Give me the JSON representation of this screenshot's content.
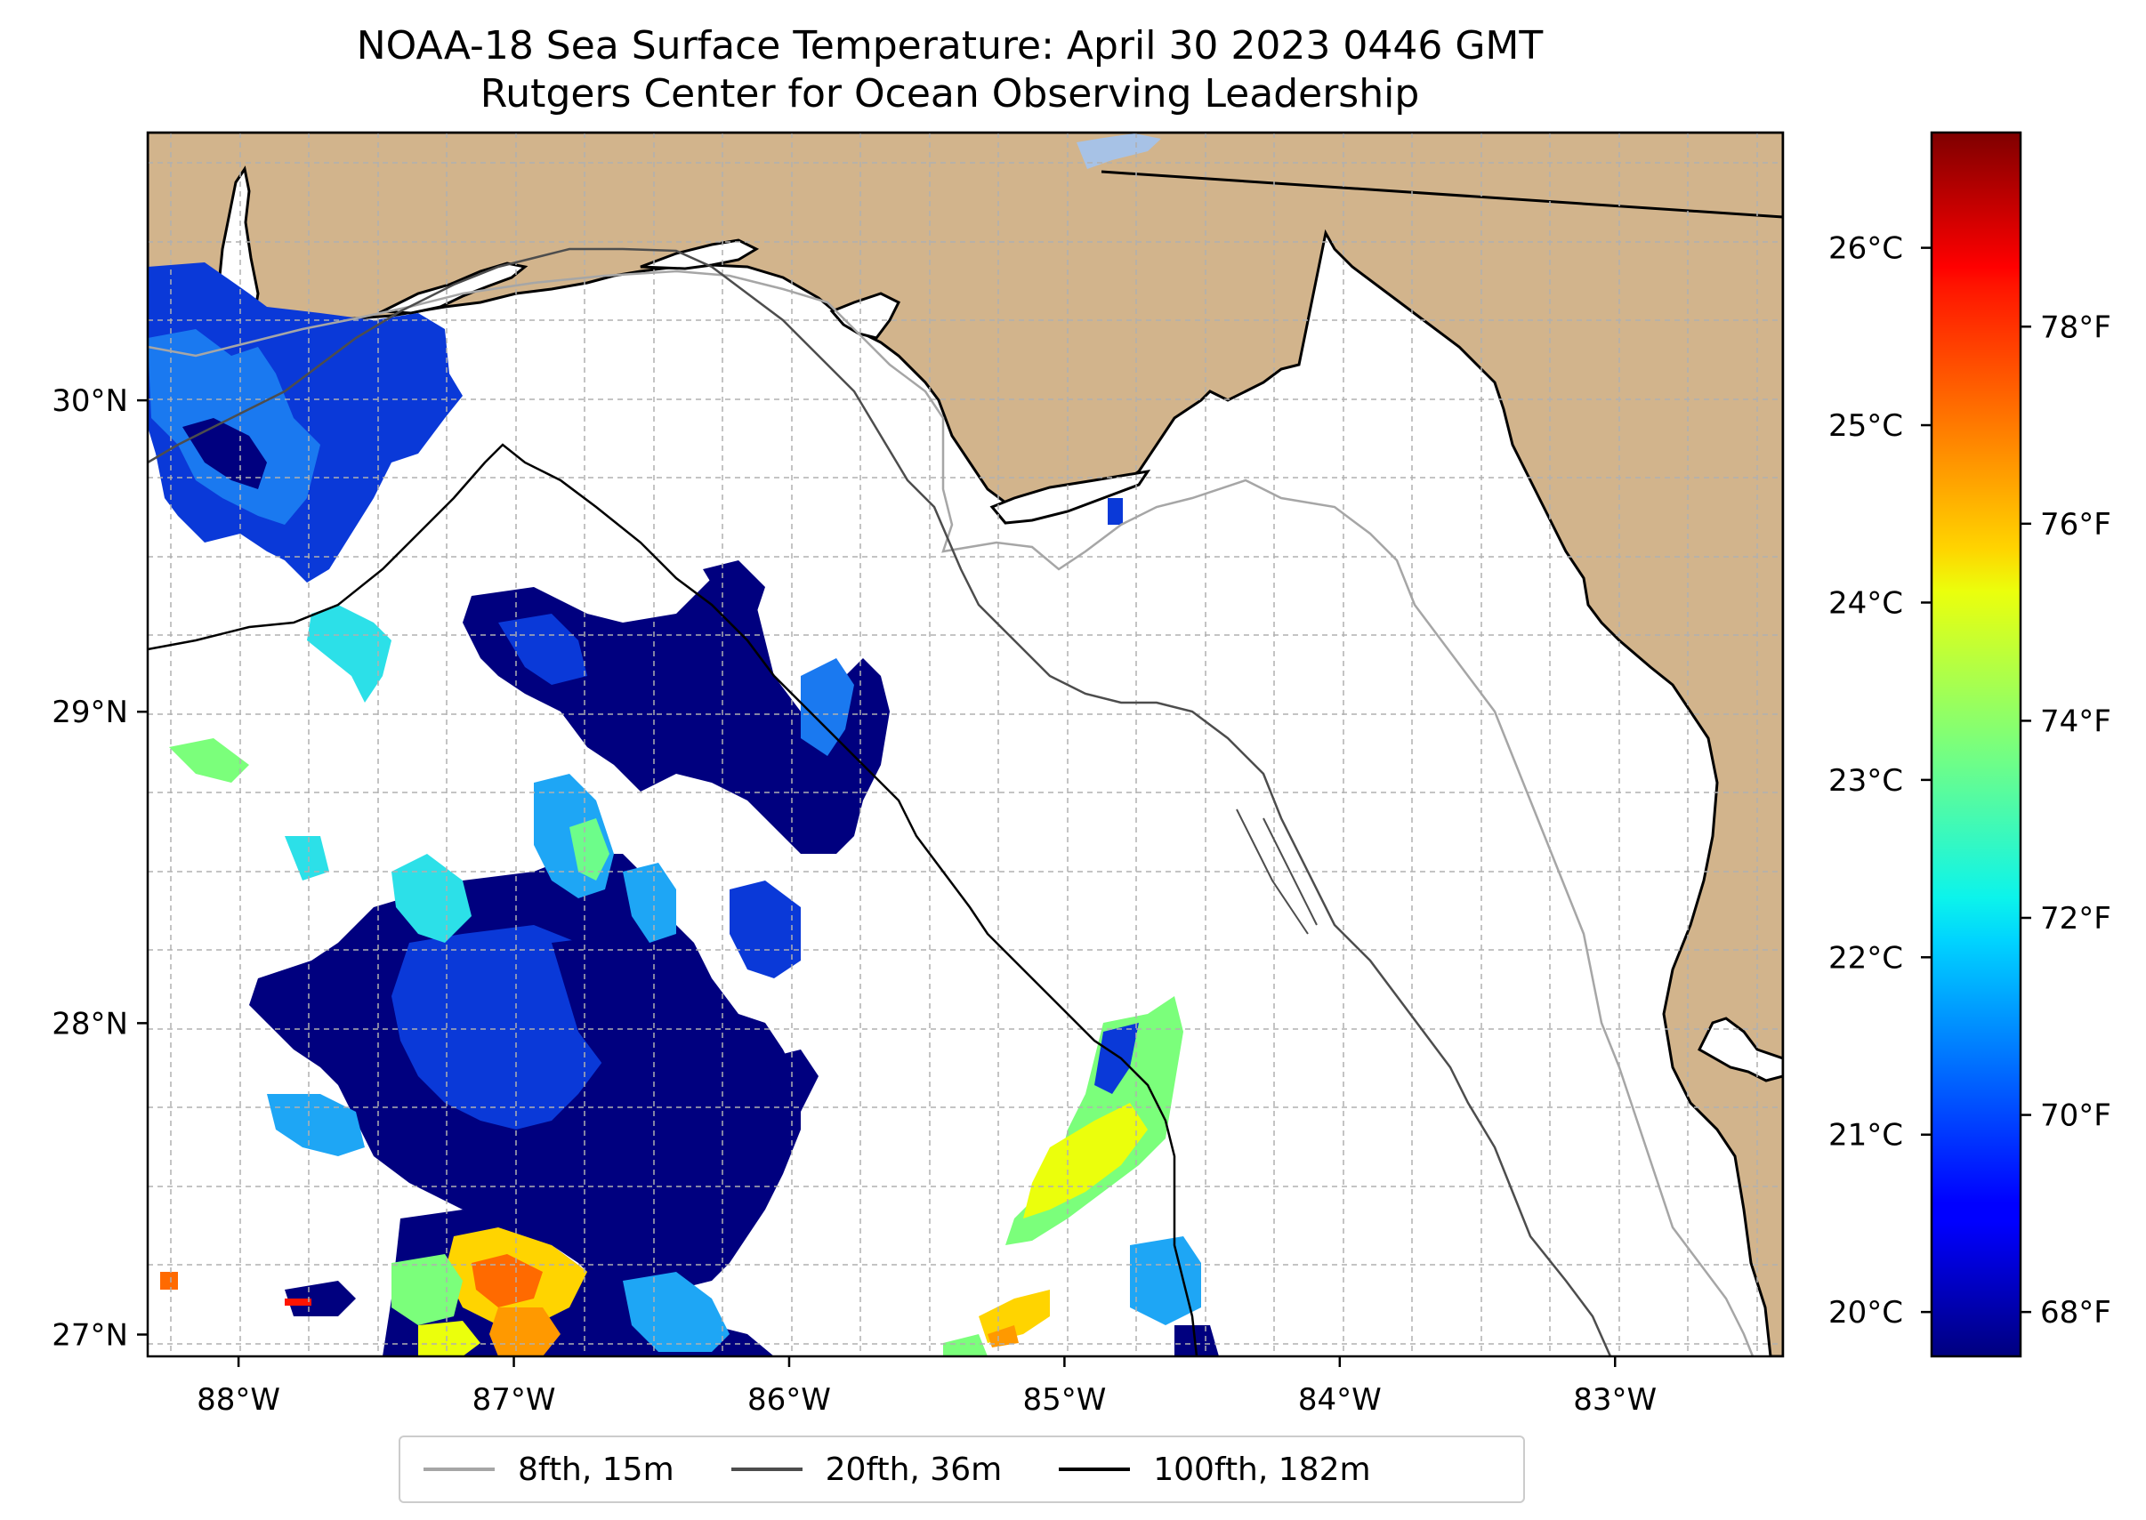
{
  "title": {
    "line1": "NOAA-18 Sea Surface Temperature: April 30 2023 0446 GMT",
    "line2": "Rutgers Center for Ocean Observing Leadership"
  },
  "map": {
    "lon_range": [
      -88.33,
      -82.39
    ],
    "lat_range": [
      26.93,
      30.86
    ],
    "x_ticks": [
      {
        "lon": -88,
        "label": "88°W"
      },
      {
        "lon": -87,
        "label": "87°W"
      },
      {
        "lon": -86,
        "label": "86°W"
      },
      {
        "lon": -85,
        "label": "85°W"
      },
      {
        "lon": -84,
        "label": "84°W"
      },
      {
        "lon": -83,
        "label": "83°W"
      }
    ],
    "y_ticks": [
      {
        "lat": 30,
        "label": "30°N"
      },
      {
        "lat": 29,
        "label": "29°N"
      },
      {
        "lat": 28,
        "label": "28°N"
      },
      {
        "lat": 27,
        "label": "27°N"
      }
    ],
    "land_color": "#d2b48c",
    "water_color": "#ffffff",
    "grid": "dashed"
  },
  "colorbar": {
    "colormap": "jet",
    "celsius_ticks": [
      {
        "value": 26,
        "label": "26°C"
      },
      {
        "value": 25,
        "label": "25°C"
      },
      {
        "value": 24,
        "label": "24°C"
      },
      {
        "value": 23,
        "label": "23°C"
      },
      {
        "value": 22,
        "label": "22°C"
      },
      {
        "value": 21,
        "label": "21°C"
      },
      {
        "value": 20,
        "label": "20°C"
      }
    ],
    "fahrenheit_ticks": [
      {
        "value": 78,
        "label": "78°F"
      },
      {
        "value": 76,
        "label": "76°F"
      },
      {
        "value": 74,
        "label": "74°F"
      },
      {
        "value": 72,
        "label": "72°F"
      },
      {
        "value": 70,
        "label": "70°F"
      },
      {
        "value": 68,
        "label": "68°F"
      }
    ],
    "range_c": [
      19.75,
      26.65
    ]
  },
  "legend": [
    {
      "label": "8fth, 15m",
      "color": "#a6a6a6"
    },
    {
      "label": "20fth, 36m",
      "color": "#4d4d4d"
    },
    {
      "label": "100fth, 182m",
      "color": "#000000"
    }
  ]
}
